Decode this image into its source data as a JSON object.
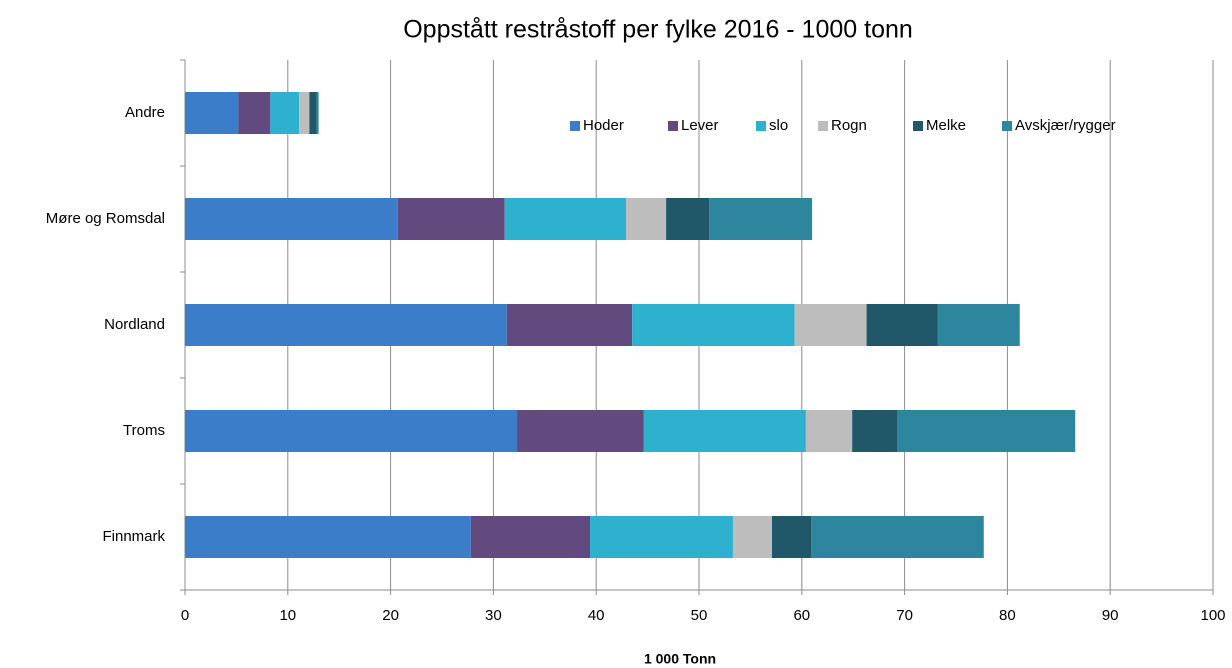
{
  "chart_data": {
    "type": "stacked_barh",
    "title": "Oppstått restråstoff per fylke 2016 - 1000 tonn",
    "x_label": "1 000 Tonn",
    "categories": [
      "Andre",
      "Møre og Romsdal",
      "Nordland",
      "Troms",
      "Finnmark"
    ],
    "series": [
      {
        "name": "Hoder",
        "color": "#3c7dc9",
        "values": [
          5.2,
          20.7,
          31.3,
          32.3,
          27.8
        ]
      },
      {
        "name": "Lever",
        "color": "#624a7e",
        "values": [
          3.1,
          10.4,
          12.2,
          12.3,
          11.6
        ]
      },
      {
        "name": "slo",
        "color": "#2eb1cf",
        "values": [
          2.8,
          11.8,
          15.8,
          15.8,
          13.9
        ]
      },
      {
        "name": "Rogn",
        "color": "#bdbdbd",
        "values": [
          1.0,
          3.9,
          7.0,
          4.5,
          3.8
        ]
      },
      {
        "name": "Melke",
        "color": "#20586a",
        "values": [
          0.7,
          4.2,
          6.9,
          4.4,
          3.8
        ]
      },
      {
        "name": "Avskjær/rygger",
        "color": "#2e869e",
        "values": [
          0.2,
          10.0,
          8.0,
          17.3,
          16.8
        ]
      }
    ],
    "xlim": [
      0,
      100
    ],
    "xticks": [
      0,
      10,
      20,
      30,
      40,
      50,
      60,
      70,
      80,
      90,
      100
    ],
    "grid": true,
    "legend": "top-right"
  }
}
